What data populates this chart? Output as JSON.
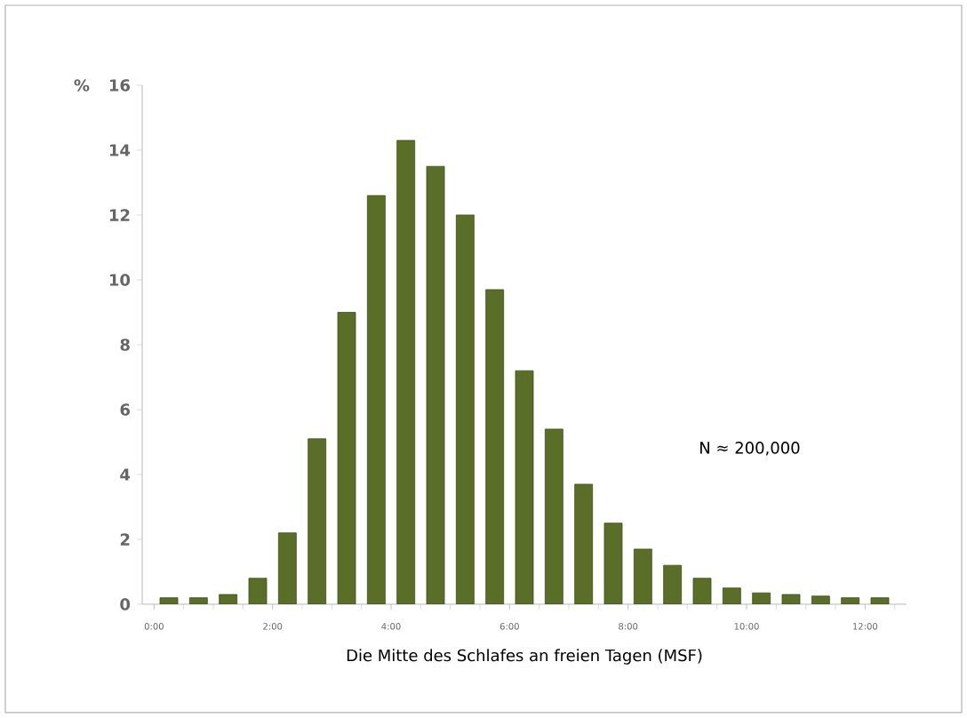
{
  "chart_data": {
    "type": "histogram",
    "xlabel": "Die Mitte des Schlafes an freien Tagen (MSF)",
    "ylabel": "%",
    "bins": [
      0,
      0.5,
      1,
      1.5,
      2,
      2.5,
      3,
      3.5,
      4,
      4.5,
      5,
      5.5,
      6,
      6.5,
      7,
      7.5,
      8,
      8.5,
      9,
      9.5,
      10,
      10.5,
      11,
      11.5,
      12,
      12.5
    ],
    "values": [
      0.2,
      0.2,
      0.3,
      0.8,
      2.2,
      5.1,
      9.0,
      12.6,
      14.3,
      13.5,
      12.0,
      9.7,
      7.2,
      5.4,
      3.7,
      2.5,
      1.7,
      1.2,
      0.8,
      0.5,
      0.35,
      0.3,
      0.25,
      0.2,
      0.2
    ],
    "color": "#5b6e28",
    "xlim": [
      -0.2,
      12.7
    ],
    "ylim": [
      0,
      16
    ],
    "xticks": [
      {
        "value": 0,
        "label": "0:00"
      },
      {
        "value": 2,
        "label": "2:00"
      },
      {
        "value": 4,
        "label": "4:00"
      },
      {
        "value": 6,
        "label": "6:00"
      },
      {
        "value": 8,
        "label": "8:00"
      },
      {
        "value": 10,
        "label": "10:00"
      },
      {
        "value": 12,
        "label": "12:00"
      }
    ],
    "yticks": [
      0,
      2,
      4,
      6,
      8,
      10,
      12,
      14,
      16
    ],
    "grid": false,
    "annotations": [
      "N ≈ 200,000"
    ]
  }
}
